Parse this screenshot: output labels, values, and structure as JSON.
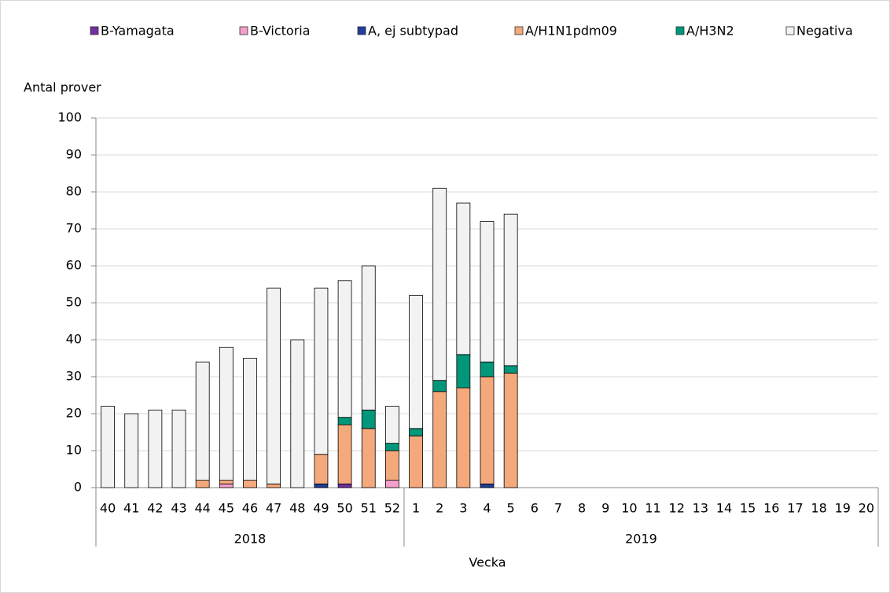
{
  "chart_data": {
    "type": "stacked-bar",
    "y_label": "Antal prover",
    "x_label": "Vecka",
    "categories": [
      "40",
      "41",
      "42",
      "43",
      "44",
      "45",
      "46",
      "47",
      "48",
      "49",
      "50",
      "51",
      "52",
      "1",
      "2",
      "3",
      "4",
      "5",
      "6",
      "7",
      "8",
      "9",
      "10",
      "11",
      "12",
      "13",
      "14",
      "15",
      "16",
      "17",
      "18",
      "19",
      "20"
    ],
    "x_groups": [
      {
        "name": "2018",
        "size": 13
      },
      {
        "name": "2019",
        "size": 20
      }
    ],
    "series": [
      {
        "name": "B-Yamagata",
        "color": "#7030a0",
        "values": [
          0,
          0,
          0,
          0,
          0,
          0,
          0,
          0,
          0,
          0,
          1,
          0,
          0,
          0,
          0,
          0,
          0,
          0,
          null,
          null,
          null,
          null,
          null,
          null,
          null,
          null,
          null,
          null,
          null,
          null,
          null,
          null,
          null
        ]
      },
      {
        "name": "B-Victoria",
        "color": "#f4a0c8",
        "values": [
          0,
          0,
          0,
          0,
          0,
          1,
          0,
          0,
          0,
          0,
          0,
          0,
          2,
          0,
          0,
          0,
          0,
          0,
          null,
          null,
          null,
          null,
          null,
          null,
          null,
          null,
          null,
          null,
          null,
          null,
          null,
          null,
          null
        ]
      },
      {
        "name": "A, ej subtypad",
        "color": "#203d9a",
        "values": [
          0,
          0,
          0,
          0,
          0,
          0,
          0,
          0,
          0,
          1,
          0,
          0,
          0,
          0,
          0,
          0,
          1,
          0,
          null,
          null,
          null,
          null,
          null,
          null,
          null,
          null,
          null,
          null,
          null,
          null,
          null,
          null,
          null
        ]
      },
      {
        "name": "A/H1N1pdm09",
        "color": "#f4a97c",
        "values": [
          0,
          0,
          0,
          0,
          2,
          1,
          2,
          1,
          0,
          8,
          16,
          16,
          8,
          14,
          26,
          27,
          29,
          31,
          null,
          null,
          null,
          null,
          null,
          null,
          null,
          null,
          null,
          null,
          null,
          null,
          null,
          null,
          null
        ]
      },
      {
        "name": "A/H3N2",
        "color": "#00977a",
        "values": [
          0,
          0,
          0,
          0,
          0,
          0,
          0,
          0,
          0,
          0,
          2,
          5,
          2,
          2,
          3,
          9,
          4,
          2,
          null,
          null,
          null,
          null,
          null,
          null,
          null,
          null,
          null,
          null,
          null,
          null,
          null,
          null,
          null
        ]
      },
      {
        "name": "Negativa",
        "color": "#f2f2f2",
        "values": [
          22,
          20,
          21,
          21,
          32,
          36,
          33,
          53,
          40,
          45,
          37,
          39,
          10,
          36,
          52,
          41,
          38,
          41,
          null,
          null,
          null,
          null,
          null,
          null,
          null,
          null,
          null,
          null,
          null,
          null,
          null,
          null,
          null
        ]
      }
    ],
    "ylim": [
      0,
      100
    ],
    "yticks": [
      0,
      10,
      20,
      30,
      40,
      50,
      60,
      70,
      80,
      90,
      100
    ],
    "grid": true,
    "legend": "top"
  }
}
